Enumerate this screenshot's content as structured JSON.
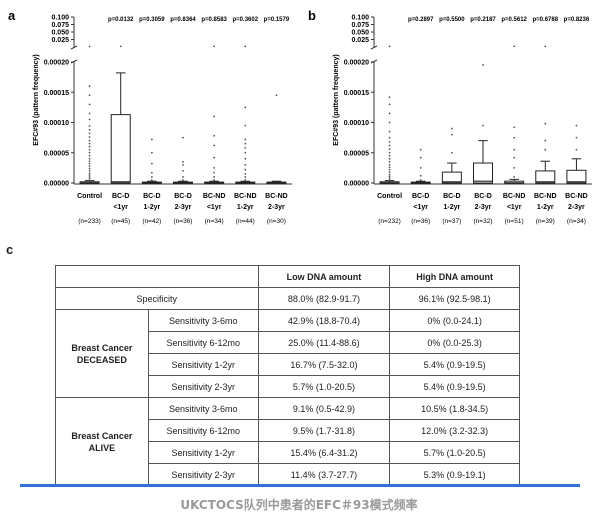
{
  "chart_data": [
    {
      "type": "box",
      "panel": "a",
      "ylabel": "EFC#93 (pattern frequency)",
      "y_ticks_lower": [
        "0.00000",
        "0.00005",
        "0.00010",
        "0.00015",
        "0.00020"
      ],
      "y_ticks_upper": [
        "0.025",
        "0.050",
        "0.075",
        "0.100"
      ],
      "categories": [
        {
          "name": "Control",
          "sub": "",
          "n": "(n=233)",
          "pvalue": "",
          "box": {
            "min": 0,
            "q1": 0,
            "median": 3e-07,
            "q3": 2e-06,
            "max": 4e-06
          },
          "outliers_lower": [
            4e-06,
            7e-06,
            1e-05,
            1.3e-05,
            1.6e-05,
            2e-05,
            2.4e-05,
            2.8e-05,
            3.2e-05,
            3.6e-05,
            4e-05,
            4.5e-05,
            5e-05,
            5.5e-05,
            6e-05,
            6.5e-05,
            7e-05,
            7.6e-05,
            8.2e-05,
            8.8e-05,
            9.4e-05,
            0.000105,
            0.000115,
            0.00013,
            0.000145,
            0.00016
          ],
          "outliers_upper": [
            0.002
          ]
        },
        {
          "name": "BC-D",
          "sub": "<1yr",
          "n": "(n=45)",
          "pvalue": "p=0.0132",
          "box": {
            "min": 0,
            "q1": 0,
            "median": 2e-06,
            "q3": 0.000113,
            "max": 0.000182
          },
          "outliers_lower": [],
          "outliers_upper": [
            0.09,
            0.002
          ]
        },
        {
          "name": "BC-D",
          "sub": "1-2yr",
          "n": "(n=42)",
          "pvalue": "p=0.3059",
          "box": {
            "min": 0,
            "q1": 0,
            "median": 3e-07,
            "q3": 1.5e-06,
            "max": 3e-06
          },
          "outliers_lower": [
            5e-06,
            1e-05,
            1.7e-05,
            3.2e-05,
            5e-05,
            7.2e-05
          ],
          "outliers_upper": []
        },
        {
          "name": "BC-D",
          "sub": "2-3yr",
          "n": "(n=36)",
          "pvalue": "p=0.8364",
          "box": {
            "min": 0,
            "q1": 0,
            "median": 3e-07,
            "q3": 1.5e-06,
            "max": 3e-06
          },
          "outliers_lower": [
            5e-06,
            1e-05,
            2e-05,
            3e-05,
            3.5e-05,
            7.5e-05
          ],
          "outliers_upper": []
        },
        {
          "name": "BC-ND",
          "sub": "<1yr",
          "n": "(n=34)",
          "pvalue": "p=0.8583",
          "box": {
            "min": 0,
            "q1": 0,
            "median": 3e-07,
            "q3": 1.5e-06,
            "max": 3e-06
          },
          "outliers_lower": [
            5e-06,
            1e-05,
            1.7e-05,
            2.5e-05,
            4.2e-05,
            6.2e-05,
            7.8e-05,
            0.00011
          ],
          "outliers_upper": [
            0.002
          ]
        },
        {
          "name": "BC-ND",
          "sub": "1-2yr",
          "n": "(n=44)",
          "pvalue": "p=0.3602",
          "box": {
            "min": 0,
            "q1": 0,
            "median": 3e-07,
            "q3": 1.5e-06,
            "max": 3e-06
          },
          "outliers_lower": [
            5e-06,
            1e-05,
            1.5e-05,
            2.2e-05,
            3e-05,
            4e-05,
            5e-05,
            5.8e-05,
            6.5e-05,
            7.2e-05,
            9.5e-05,
            0.000125
          ],
          "outliers_upper": [
            0.002
          ]
        },
        {
          "name": "BC-ND",
          "sub": "2-3yr",
          "n": "(n=30)",
          "pvalue": "p=0.1579",
          "box": {
            "min": 0,
            "q1": 0,
            "median": 3e-07,
            "q3": 1.5e-06,
            "max": 3e-06
          },
          "outliers_lower": [
            0.000145
          ],
          "outliers_upper": []
        }
      ]
    },
    {
      "type": "box",
      "panel": "b",
      "ylabel": "EFC#93 (pattern frequency)",
      "y_ticks_lower": [
        "0.00000",
        "0.00005",
        "0.00010",
        "0.00015",
        "0.00020"
      ],
      "y_ticks_upper": [
        "0.025",
        "0.050",
        "0.075",
        "0.100"
      ],
      "categories": [
        {
          "name": "Control",
          "sub": "",
          "n": "(n=232)",
          "pvalue": "",
          "box": {
            "min": 0,
            "q1": 0,
            "median": 3e-07,
            "q3": 2e-06,
            "max": 4e-06
          },
          "outliers_lower": [
            5e-06,
            8e-06,
            1.1e-05,
            1.4e-05,
            1.8e-05,
            2.2e-05,
            2.6e-05,
            3e-05,
            3.5e-05,
            4e-05,
            4.5e-05,
            5e-05,
            5.6e-05,
            6.2e-05,
            6.8e-05,
            7.5e-05,
            8.5e-05,
            0.0001,
            0.000115,
            0.00013,
            0.000142
          ],
          "outliers_upper": [
            0.002
          ]
        },
        {
          "name": "BC-D",
          "sub": "<1yr",
          "n": "(n=36)",
          "pvalue": "p=0.2897",
          "box": {
            "min": 0,
            "q1": 0,
            "median": 3e-07,
            "q3": 1.5e-06,
            "max": 3e-06
          },
          "outliers_lower": [
            5e-06,
            1.2e-05,
            2.5e-05,
            4.2e-05,
            5.5e-05
          ],
          "outliers_upper": []
        },
        {
          "name": "BC-D",
          "sub": "1-2yr",
          "n": "(n=37)",
          "pvalue": "p=0.5500",
          "box": {
            "min": 0,
            "q1": 0,
            "median": 2e-06,
            "q3": 1.8e-05,
            "max": 3.3e-05
          },
          "outliers_lower": [
            5e-05,
            8e-05,
            9e-05
          ],
          "outliers_upper": []
        },
        {
          "name": "BC-D",
          "sub": "2-3yr",
          "n": "(n=32)",
          "pvalue": "p=0.2187",
          "box": {
            "min": 0,
            "q1": 0,
            "median": 3e-06,
            "q3": 3.3e-05,
            "max": 7e-05
          },
          "outliers_lower": [
            9.5e-05,
            0.000195
          ],
          "outliers_upper": []
        },
        {
          "name": "BC-ND",
          "sub": "<1yr",
          "n": "(n=51)",
          "pvalue": "p=0.5612",
          "box": {
            "min": 0,
            "q1": 0,
            "median": 3e-07,
            "q3": 3e-06,
            "max": 6e-06
          },
          "outliers_lower": [
            1e-05,
            2.5e-05,
            4.2e-05,
            5.5e-05,
            7.5e-05,
            9.2e-05
          ],
          "outliers_upper": [
            0.002
          ]
        },
        {
          "name": "BC-ND",
          "sub": "1-2yr",
          "n": "(n=39)",
          "pvalue": "p=0.6788",
          "box": {
            "min": 0,
            "q1": 0,
            "median": 2e-06,
            "q3": 2e-05,
            "max": 3.6e-05
          },
          "outliers_lower": [
            5.5e-05,
            7e-05,
            9.8e-05
          ],
          "outliers_upper": [
            0.002
          ]
        },
        {
          "name": "BC-ND",
          "sub": "2-3yr",
          "n": "(n=34)",
          "pvalue": "p=0.8236",
          "box": {
            "min": 0,
            "q1": 0,
            "median": 2e-06,
            "q3": 2.1e-05,
            "max": 4e-05
          },
          "outliers_lower": [
            5.5e-05,
            7.5e-05,
            9.5e-05
          ],
          "outliers_upper": []
        }
      ]
    },
    {
      "type": "table",
      "panel": "c",
      "columns": [
        "",
        "",
        "Low DNA amount",
        "High DNA amount"
      ],
      "specificity": {
        "label": "Specificity",
        "low": "88.0% (82.9-91.7)",
        "high": "96.1% (92.5-98.1)"
      },
      "groups": [
        {
          "label_line1": "Breast Cancer",
          "label_line2": "DECEASED",
          "rows": [
            {
              "label": "Sensitivity 3-6mo",
              "low": "42.9% (18.8-70.4)",
              "high": "0% (0.0-24.1)"
            },
            {
              "label": "Sensitivity 6-12mo",
              "low": "25.0% (11.4-88.6)",
              "high": "0% (0.0-25.3)"
            },
            {
              "label": "Sensitivity 1-2yr",
              "low": "16.7% (7.5-32.0)",
              "high": "5.4% (0.9-19.5)"
            },
            {
              "label": "Sensitivity 2-3yr",
              "low": "5.7% (1.0-20.5)",
              "high": "5.4% (0.9-19.5)"
            }
          ]
        },
        {
          "label_line1": "Breast Cancer",
          "label_line2": "ALIVE",
          "rows": [
            {
              "label": "Sensitivity 3-6mo",
              "low": "9.1% (0.5-42.9)",
              "high": "10.5% (1.8-34.5)"
            },
            {
              "label": "Sensitivity 6-12mo",
              "low": "9.5% (1.7-31.8)",
              "high": "12.0% (3.2-32.3)"
            },
            {
              "label": "Sensitivity 1-2yr",
              "low": "15.4% (6.4-31.2)",
              "high": "5.7% (1.0-20.5)"
            },
            {
              "label": "Sensitivity 2-3yr",
              "low": "11.4% (3.7-27.7)",
              "high": "5.3% (0.9-19.1)"
            }
          ]
        }
      ]
    }
  ],
  "panel_labels": {
    "a": "a",
    "b": "b",
    "c": "c"
  },
  "caption": "UKCTOCS队列中患者的EFC＃93模式频率",
  "colors": {
    "caption": "#9a9a9a",
    "accent_line": "#2f6fd6"
  }
}
